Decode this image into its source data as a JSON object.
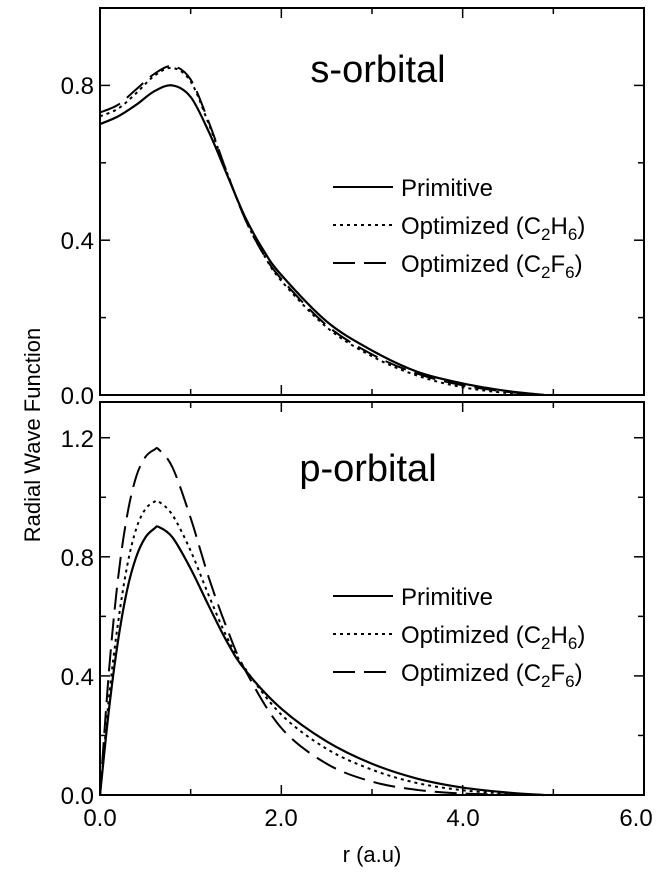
{
  "chart_data": [
    {
      "type": "line",
      "title": "s-orbital",
      "xlabel": "r (a.u)",
      "ylabel": "Radial Wave Function",
      "xlim": [
        0,
        6
      ],
      "ylim": [
        0,
        1.0
      ],
      "xticks": [
        "0.0",
        "2.0",
        "4.0",
        "6.0"
      ],
      "yticks": [
        "0.0",
        "0.4",
        "0.8"
      ],
      "grid": false,
      "legend_position": "center-right",
      "series": [
        {
          "name": "Primitive",
          "style": "solid",
          "x": [
            0,
            0.2,
            0.4,
            0.6,
            0.8,
            1.0,
            1.2,
            1.4,
            1.6,
            1.8,
            2.0,
            2.5,
            3.0,
            3.5,
            4.0,
            4.5,
            4.9
          ],
          "y": [
            0.7,
            0.72,
            0.75,
            0.785,
            0.8,
            0.77,
            0.68,
            0.57,
            0.46,
            0.375,
            0.31,
            0.19,
            0.115,
            0.06,
            0.03,
            0.01,
            0.0
          ]
        },
        {
          "name": "Optimized (C2H6)",
          "style": "dotted",
          "x": [
            0,
            0.2,
            0.4,
            0.6,
            0.8,
            1.0,
            1.2,
            1.4,
            1.6,
            1.8,
            2.0,
            2.5,
            3.0,
            3.5,
            4.0,
            4.5,
            4.9
          ],
          "y": [
            0.72,
            0.74,
            0.78,
            0.825,
            0.845,
            0.81,
            0.7,
            0.575,
            0.455,
            0.365,
            0.295,
            0.175,
            0.1,
            0.05,
            0.02,
            0.005,
            0.0
          ]
        },
        {
          "name": "Optimized (C2F6)",
          "style": "dashed",
          "x": [
            0,
            0.2,
            0.4,
            0.6,
            0.8,
            1.0,
            1.2,
            1.4,
            1.6,
            1.8,
            2.0,
            2.5,
            3.0,
            3.5,
            4.0,
            4.5,
            4.9
          ],
          "y": [
            0.73,
            0.75,
            0.79,
            0.83,
            0.85,
            0.815,
            0.705,
            0.575,
            0.455,
            0.365,
            0.3,
            0.18,
            0.105,
            0.055,
            0.025,
            0.008,
            0.0
          ]
        }
      ]
    },
    {
      "type": "line",
      "title": "p-orbital",
      "xlabel": "r (a.u)",
      "ylabel": "Radial Wave Function",
      "xlim": [
        0,
        6
      ],
      "ylim": [
        0,
        1.3
      ],
      "xticks": [
        "0.0",
        "2.0",
        "4.0",
        "6.0"
      ],
      "yticks": [
        "0.0",
        "0.4",
        "0.8",
        "1.2"
      ],
      "grid": false,
      "legend_position": "center-right",
      "series": [
        {
          "name": "Primitive",
          "style": "solid",
          "x": [
            0,
            0.1,
            0.2,
            0.3,
            0.4,
            0.5,
            0.6,
            0.65,
            0.8,
            1.0,
            1.2,
            1.4,
            1.6,
            2.0,
            2.5,
            3.0,
            3.5,
            4.0,
            4.5,
            4.9
          ],
          "y": [
            0.0,
            0.29,
            0.52,
            0.69,
            0.8,
            0.865,
            0.895,
            0.9,
            0.865,
            0.76,
            0.635,
            0.515,
            0.42,
            0.29,
            0.18,
            0.105,
            0.055,
            0.025,
            0.008,
            0.0
          ]
        },
        {
          "name": "Optimized (C2H6)",
          "style": "dotted",
          "x": [
            0,
            0.1,
            0.2,
            0.3,
            0.4,
            0.5,
            0.6,
            0.65,
            0.8,
            1.0,
            1.2,
            1.4,
            1.6,
            2.0,
            2.5,
            3.0,
            3.5,
            4.0,
            4.5,
            4.9
          ],
          "y": [
            0.0,
            0.33,
            0.58,
            0.77,
            0.895,
            0.96,
            0.985,
            0.985,
            0.94,
            0.82,
            0.67,
            0.53,
            0.425,
            0.27,
            0.155,
            0.085,
            0.04,
            0.016,
            0.004,
            0.0
          ]
        },
        {
          "name": "Optimized (C2F6)",
          "style": "dashed",
          "x": [
            0,
            0.1,
            0.2,
            0.3,
            0.4,
            0.5,
            0.6,
            0.65,
            0.8,
            1.0,
            1.2,
            1.4,
            1.6,
            2.0,
            2.5,
            3.0,
            3.5,
            4.0,
            4.5,
            4.9
          ],
          "y": [
            0.0,
            0.42,
            0.73,
            0.94,
            1.07,
            1.135,
            1.16,
            1.16,
            1.1,
            0.93,
            0.73,
            0.56,
            0.42,
            0.225,
            0.105,
            0.045,
            0.017,
            0.005,
            0.001,
            0.0
          ]
        }
      ]
    }
  ],
  "legend_labels": [
    {
      "prefix": "Primitive",
      "sub": "",
      "mid": "",
      "sub2": "",
      "suffix": ""
    },
    {
      "prefix": "Optimized (C",
      "sub": "2",
      "mid": "H",
      "sub2": "6",
      "suffix": ")"
    },
    {
      "prefix": "Optimized (C",
      "sub": "2",
      "mid": "F",
      "sub2": "6",
      "suffix": ")"
    }
  ]
}
